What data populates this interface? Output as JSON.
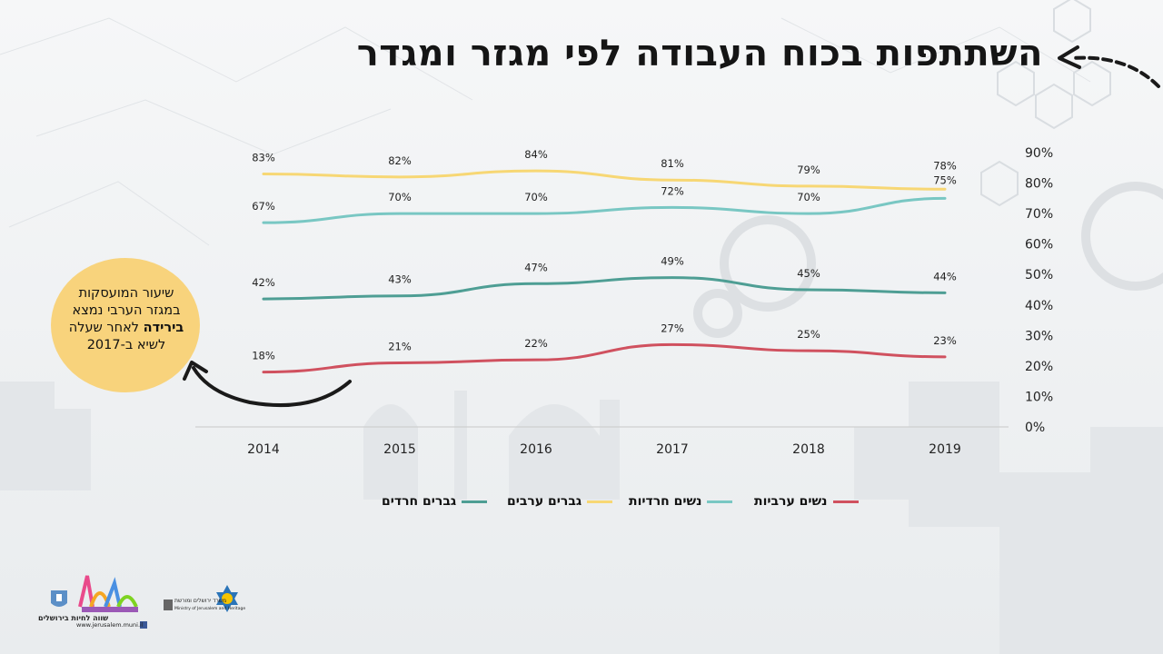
{
  "slide": {
    "title": "השתתפות בכוח העבודה לפי מגזר ומגדר",
    "callout": {
      "line1": "שיעור המועסקות",
      "line2": "במגזר הערבי נמצא",
      "emphasis": "בירידה",
      "line3_rest": " לאחר שעלה",
      "line4": "לשיא ב-2017"
    },
    "logos": {
      "jerusalem_caption": "שווה לחיות בירושלים",
      "url": "www.jerusalem.muni.il",
      "ministry_caption": "משרד ירושלים ומורשת",
      "ministry_caption_en": "Ministry of Jerusalem and Heritage"
    }
  },
  "colors": {
    "haredi_men": "#4e9e94",
    "arab_men": "#f7d774",
    "haredi_women": "#79c7c3",
    "arab_women": "#d0515f",
    "callout_bg": "#f8d37c"
  },
  "chart_data": {
    "type": "line",
    "title": "השתתפות בכוח העבודה לפי מגזר ומגדר",
    "xlabel": "",
    "ylabel": "",
    "ylim": [
      0,
      90
    ],
    "y_axis_side": "right",
    "yticks": [
      "90%",
      "80%",
      "70%",
      "60%",
      "50%",
      "40%",
      "30%",
      "20%",
      "10%",
      "0%"
    ],
    "categories": [
      "2014",
      "2015",
      "2016",
      "2017",
      "2018",
      "2019"
    ],
    "grid": false,
    "legend_position": "bottom",
    "series": [
      {
        "name": "גברים חרדים",
        "color_key": "haredi_men",
        "values": [
          42,
          43,
          47,
          49,
          45,
          44
        ],
        "labels": [
          "42%",
          "43%",
          "47%",
          "49%",
          "45%",
          "44%"
        ]
      },
      {
        "name": "גברים ערבים",
        "color_key": "arab_men",
        "values": [
          83,
          82,
          84,
          81,
          79,
          78
        ],
        "labels": [
          "83%",
          "82%",
          "84%",
          "81%",
          "79%",
          "78%"
        ]
      },
      {
        "name": "נשים חרדיות",
        "color_key": "haredi_women",
        "values": [
          67,
          70,
          70,
          72,
          70,
          75
        ],
        "labels": [
          "67%",
          "70%",
          "70%",
          "72%",
          "70%",
          "75%"
        ]
      },
      {
        "name": "נשים ערביות",
        "color_key": "arab_women",
        "values": [
          18,
          21,
          22,
          27,
          25,
          23
        ],
        "labels": [
          "18%",
          "21%",
          "22%",
          "27%",
          "25%",
          "23%"
        ]
      }
    ]
  }
}
